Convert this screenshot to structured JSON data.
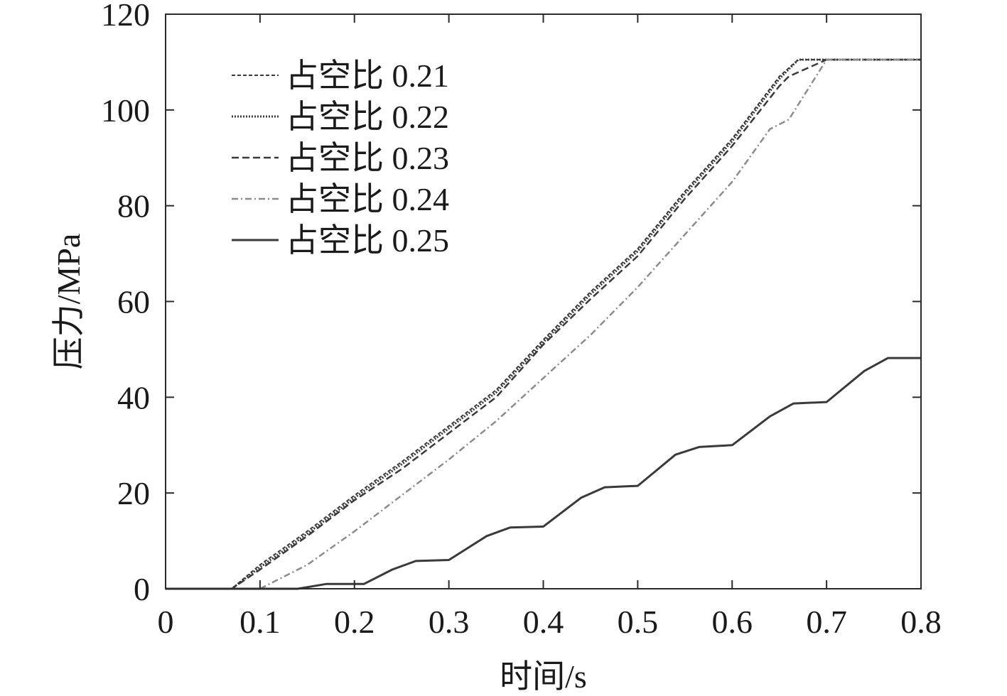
{
  "chart_data": {
    "type": "line",
    "xlabel": "时间/s",
    "ylabel": "压力/MPa",
    "xlim": [
      0,
      0.8
    ],
    "ylim": [
      0,
      120
    ],
    "xticks": [
      "0",
      "0.1",
      "0.2",
      "0.3",
      "0.4",
      "0.5",
      "0.6",
      "0.7",
      "0.8"
    ],
    "yticks": [
      "0",
      "20",
      "40",
      "60",
      "80",
      "100",
      "120"
    ],
    "grid": false,
    "legend_position": "top-left",
    "series": [
      {
        "name": "占空比 0.21",
        "style": "dashed-fine",
        "color": "#3a3a3a",
        "x": [
          0,
          0.07,
          0.1,
          0.15,
          0.2,
          0.25,
          0.3,
          0.35,
          0.4,
          0.45,
          0.5,
          0.55,
          0.6,
          0.65,
          0.67,
          0.8
        ],
        "y": [
          0,
          0,
          5,
          12,
          19.5,
          26.5,
          34,
          41.5,
          52,
          62,
          71,
          83,
          94,
          107,
          110.5,
          110.5
        ]
      },
      {
        "name": "占空比 0.22",
        "style": "dotted",
        "color": "#3a3a3a",
        "x": [
          0,
          0.07,
          0.1,
          0.15,
          0.2,
          0.25,
          0.3,
          0.35,
          0.4,
          0.45,
          0.5,
          0.55,
          0.6,
          0.65,
          0.67,
          0.8
        ],
        "y": [
          0,
          0,
          4.5,
          11.5,
          19,
          26,
          33.5,
          41,
          51.5,
          61.5,
          70.5,
          82.5,
          93.5,
          106.5,
          110.5,
          110.5
        ]
      },
      {
        "name": "占空比 0.23",
        "style": "dashed",
        "color": "#3a3a3a",
        "x": [
          0,
          0.07,
          0.1,
          0.15,
          0.2,
          0.25,
          0.3,
          0.35,
          0.4,
          0.45,
          0.5,
          0.55,
          0.6,
          0.65,
          0.66,
          0.7,
          0.8
        ],
        "y": [
          0,
          0,
          4,
          11,
          18.5,
          25,
          32.5,
          40,
          51,
          60.5,
          69.5,
          81.5,
          92.5,
          105,
          107,
          110.5,
          110.5
        ]
      },
      {
        "name": "占空比 0.24",
        "style": "dash-dot",
        "color": "#8c8c8c",
        "x": [
          0,
          0.1,
          0.15,
          0.2,
          0.25,
          0.3,
          0.35,
          0.4,
          0.45,
          0.5,
          0.55,
          0.6,
          0.64,
          0.66,
          0.7,
          0.8
        ],
        "y": [
          0,
          0,
          5,
          12,
          19.5,
          27,
          35,
          44,
          53,
          63,
          74,
          85,
          96,
          98,
          110.5,
          110.5
        ]
      },
      {
        "name": "占空比 0.25",
        "style": "solid",
        "color": "#3a3a3a",
        "x": [
          0,
          0.14,
          0.17,
          0.21,
          0.24,
          0.265,
          0.3,
          0.34,
          0.365,
          0.4,
          0.44,
          0.465,
          0.5,
          0.54,
          0.565,
          0.6,
          0.64,
          0.665,
          0.7,
          0.74,
          0.765,
          0.8
        ],
        "y": [
          0,
          0,
          1,
          1,
          4,
          5.8,
          6,
          11,
          12.8,
          13,
          19,
          21.2,
          21.5,
          28,
          29.6,
          30,
          36,
          38.7,
          39,
          45.5,
          48.2,
          48.2
        ]
      }
    ]
  }
}
